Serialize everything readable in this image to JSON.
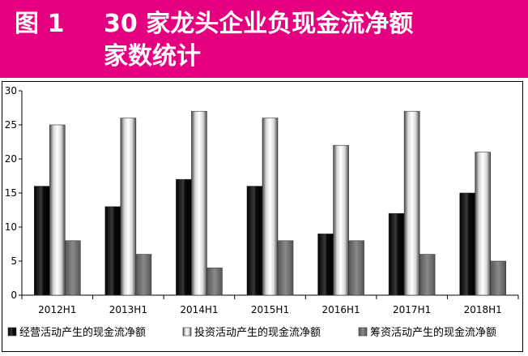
{
  "banner": {
    "figure_label": "图 1",
    "title_line1": "30 家龙头企业负现金流净额",
    "title_line2": "家数统计",
    "color": "#e5007f"
  },
  "chart_data": {
    "type": "bar",
    "title": "",
    "xlabel": "",
    "ylabel": "",
    "categories": [
      "2012H1",
      "2013H1",
      "2014H1",
      "2015H1",
      "2016H1",
      "2017H1",
      "2018H1"
    ],
    "ylim": [
      0,
      30
    ],
    "yticks": [
      0,
      5,
      10,
      15,
      20,
      25,
      30
    ],
    "grid": false,
    "legend_position": "bottom",
    "series": [
      {
        "name": "经营活动产生的现金流净额",
        "values": [
          16,
          13,
          17,
          16,
          9,
          12,
          15
        ],
        "color": "#000000",
        "style": "black-gradient"
      },
      {
        "name": "投资活动产生的现金流净额",
        "values": [
          25,
          26,
          27,
          26,
          22,
          27,
          21
        ],
        "color": "#ffffff",
        "style": "white-gradient"
      },
      {
        "name": "筹资活动产生的现金流净额",
        "values": [
          8,
          6,
          4,
          8,
          8,
          6,
          5
        ],
        "color": "#808080",
        "style": "gray-gradient"
      }
    ]
  }
}
